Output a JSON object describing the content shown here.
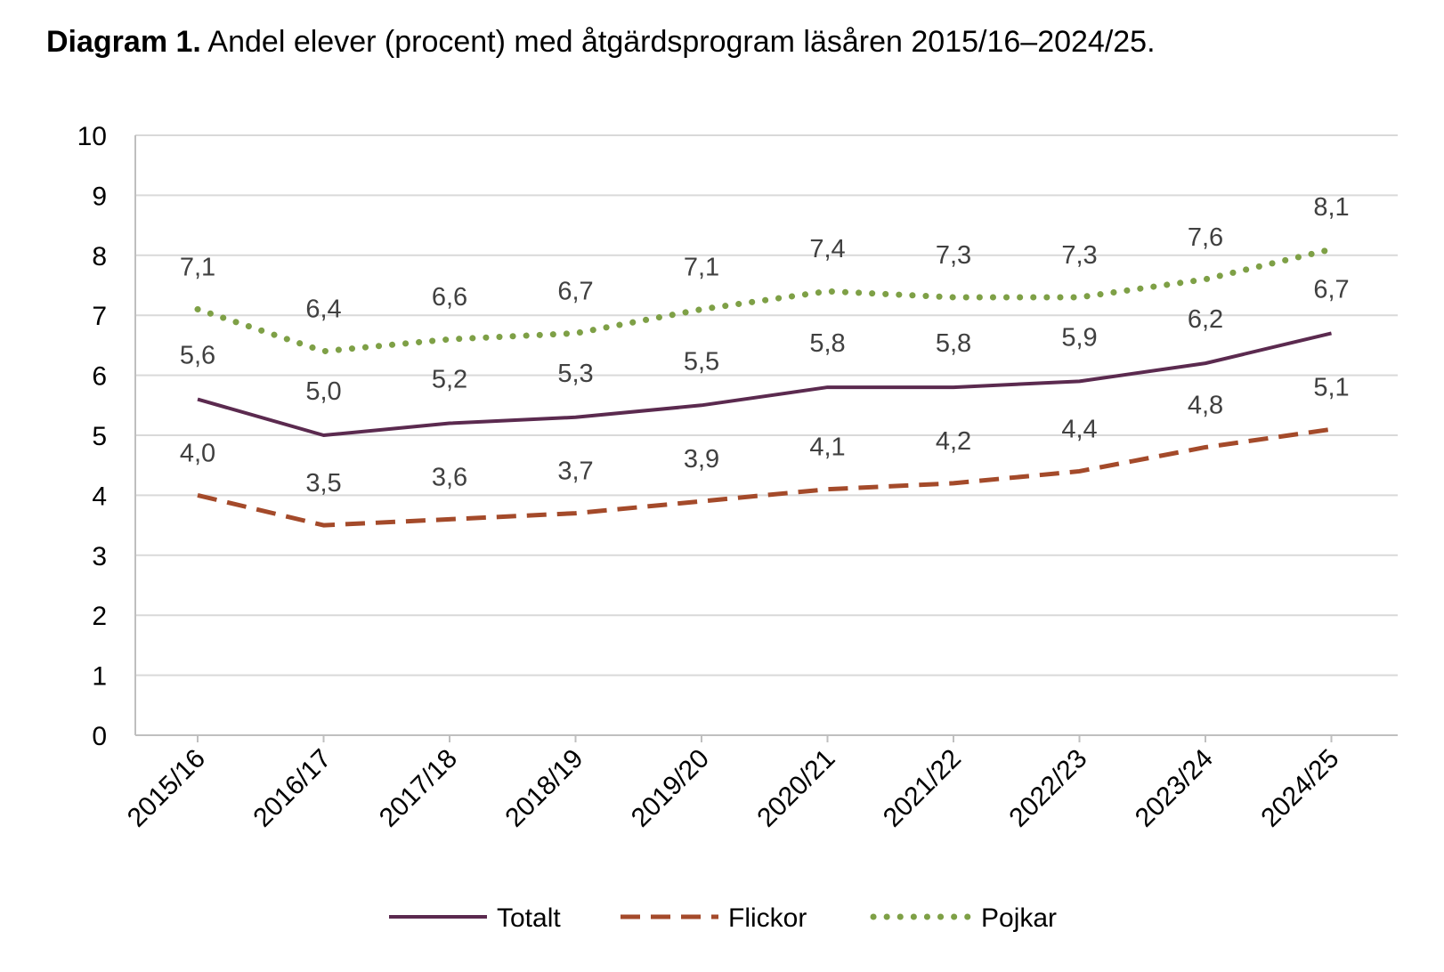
{
  "title": {
    "bold": "Diagram 1.",
    "text": " Andel elever (procent) med åtgärdsprogram läsåren 2015/16–2024/25."
  },
  "chart_data": {
    "type": "line",
    "categories": [
      "2015/16",
      "2016/17",
      "2017/18",
      "2018/19",
      "2019/20",
      "2020/21",
      "2021/22",
      "2022/23",
      "2023/24",
      "2024/25"
    ],
    "y_ticks": [
      "0",
      "1",
      "2",
      "3",
      "4",
      "5",
      "6",
      "7",
      "8",
      "9",
      "10"
    ],
    "ylim": [
      0,
      10
    ],
    "grid": "horizontal",
    "legend_position": "bottom",
    "series": [
      {
        "name": "Totalt",
        "color": "#5b2a4f",
        "style": "solid",
        "values": [
          5.6,
          5.0,
          5.2,
          5.3,
          5.5,
          5.8,
          5.8,
          5.9,
          6.2,
          6.7
        ],
        "labels": [
          "5,6",
          "5,0",
          "5,2",
          "5,3",
          "5,5",
          "5,8",
          "5,8",
          "5,9",
          "6,2",
          "6,7"
        ]
      },
      {
        "name": "Flickor",
        "color": "#a44a2a",
        "style": "dashed",
        "values": [
          4.0,
          3.5,
          3.6,
          3.7,
          3.9,
          4.1,
          4.2,
          4.4,
          4.8,
          5.1
        ],
        "labels": [
          "4,0",
          "3,5",
          "3,6",
          "3,7",
          "3,9",
          "4,1",
          "4,2",
          "4,4",
          "4,8",
          "5,1"
        ]
      },
      {
        "name": "Pojkar",
        "color": "#7ea046",
        "style": "dotted",
        "values": [
          7.1,
          6.4,
          6.6,
          6.7,
          7.1,
          7.4,
          7.3,
          7.3,
          7.6,
          8.1
        ],
        "labels": [
          "7,1",
          "6,4",
          "6,6",
          "6,7",
          "7,1",
          "7,4",
          "7,3",
          "7,3",
          "7,6",
          "8,1"
        ]
      }
    ]
  }
}
